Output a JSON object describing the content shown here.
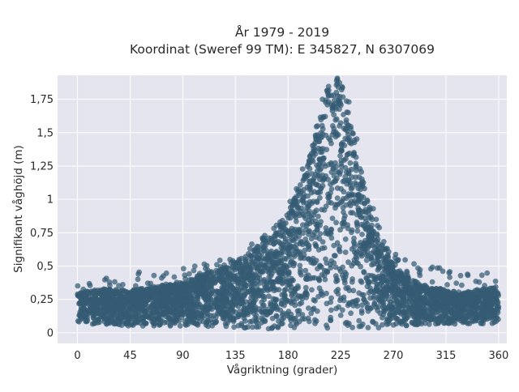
{
  "chart_data": {
    "type": "scatter",
    "title_line1": "År 1979 - 2019",
    "title_line2": "Koordinat (Sweref 99 TM): E 345827, N 6307069",
    "xlabel": "Vågriktning (grader)",
    "ylabel": "Signifikant våghöjd (m)",
    "xlim": [
      -17,
      367
    ],
    "ylim": [
      -0.08,
      1.93
    ],
    "x_ticks": [
      0,
      45,
      90,
      135,
      180,
      225,
      270,
      315,
      360
    ],
    "x_tick_labels": [
      "0",
      "45",
      "90",
      "135",
      "180",
      "225",
      "270",
      "315",
      "360"
    ],
    "y_ticks": [
      0,
      0.25,
      0.5,
      0.75,
      1,
      1.25,
      1.5,
      1.75
    ],
    "y_tick_labels": [
      "0",
      "0,25",
      "0,5",
      "0,75",
      "1",
      "1,25",
      "1,5",
      "1,75"
    ],
    "grid": true,
    "colors": {
      "marker": "#345b73",
      "plot_background": "#e5e5ef",
      "grid": "#ffffff"
    },
    "envelope": {
      "x": [
        0,
        20,
        45,
        90,
        120,
        135,
        150,
        165,
        180,
        195,
        205,
        215,
        222,
        230,
        240,
        250,
        260,
        270,
        285,
        300,
        315,
        330,
        345,
        360
      ],
      "upper": [
        0.3,
        0.33,
        0.32,
        0.38,
        0.48,
        0.52,
        0.62,
        0.72,
        0.9,
        1.2,
        1.55,
        1.82,
        1.9,
        1.78,
        1.3,
        0.9,
        0.68,
        0.5,
        0.4,
        0.35,
        0.32,
        0.3,
        0.33,
        0.34
      ],
      "lower": [
        0.07,
        0.06,
        0.05,
        0.05,
        0.04,
        0.03,
        0.02,
        0.02,
        0.02,
        0.02,
        0.02,
        0.03,
        0.03,
        0.03,
        0.03,
        0.03,
        0.04,
        0.05,
        0.05,
        0.06,
        0.06,
        0.06,
        0.06,
        0.07
      ],
      "outliers_max": [
        0.37,
        0.4,
        0.45,
        0.48,
        0.55,
        0.55,
        0.68,
        0.78,
        0.97,
        1.3,
        1.7,
        1.88,
        1.91,
        1.85,
        1.45,
        1.0,
        0.76,
        0.6,
        0.52,
        0.5,
        0.5,
        0.48,
        0.45,
        0.45
      ]
    }
  }
}
